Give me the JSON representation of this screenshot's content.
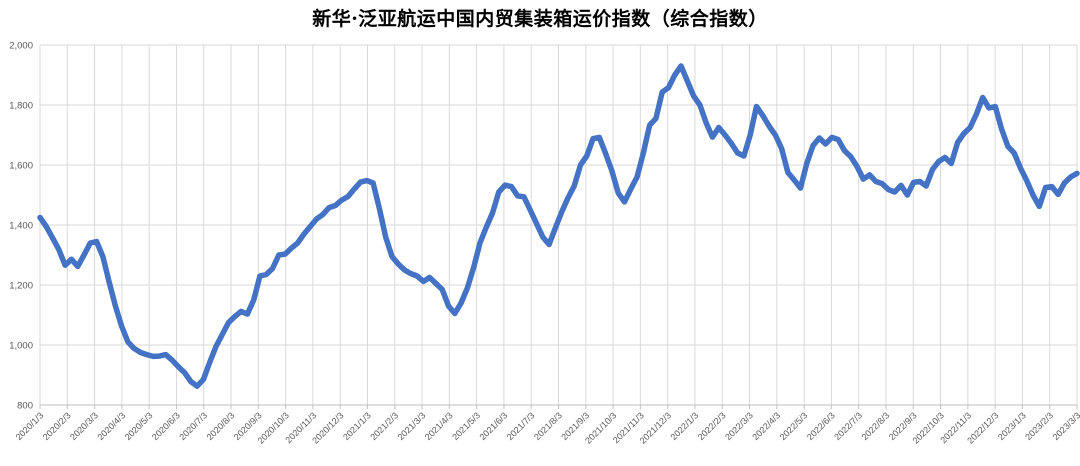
{
  "chart_data": {
    "type": "line",
    "title": "新华·泛亚航运中国内贸集装箱运价指数（综合指数）",
    "legend": "none",
    "grid": true,
    "ylim": [
      800,
      2000
    ],
    "y_tick_step": 200,
    "y_tick_labels": [
      "800",
      "1,000",
      "1,200",
      "1,400",
      "1,600",
      "1,800",
      "2,000"
    ],
    "x_tick_labels": [
      "2020/1/3",
      "2020/2/3",
      "2020/3/3",
      "2020/4/3",
      "2020/5/3",
      "2020/6/3",
      "2020/7/3",
      "2020/8/3",
      "2020/9/3",
      "2020/10/3",
      "2020/11/3",
      "2020/12/3",
      "2021/1/3",
      "2021/2/3",
      "2021/3/3",
      "2021/4/3",
      "2021/5/3",
      "2021/6/3",
      "2021/7/3",
      "2021/8/3",
      "2021/9/3",
      "2021/10/3",
      "2021/11/3",
      "2021/12/3",
      "2022/1/3",
      "2022/2/3",
      "2022/3/3",
      "2022/4/3",
      "2022/5/3",
      "2022/6/3",
      "2022/7/3",
      "2022/8/3",
      "2022/9/3",
      "2022/10/3",
      "2022/11/3",
      "2022/12/3",
      "2023/1/3",
      "2023/2/3",
      "2023/3/3"
    ],
    "colors": {
      "line": "#4472C4",
      "gridline": "#D9D9D9",
      "axis": "#BFBFBF",
      "tick_label": "#595959",
      "title": "#000000"
    },
    "series": [
      {
        "name": "综合指数",
        "frequency": "weekly",
        "values": [
          1425,
          1395,
          1357,
          1318,
          1266,
          1286,
          1262,
          1300,
          1340,
          1345,
          1295,
          1210,
          1130,
          1062,
          1010,
          988,
          975,
          968,
          962,
          963,
          968,
          950,
          928,
          908,
          878,
          863,
          885,
          942,
          995,
          1035,
          1075,
          1095,
          1112,
          1103,
          1150,
          1230,
          1235,
          1255,
          1300,
          1303,
          1323,
          1340,
          1370,
          1395,
          1420,
          1435,
          1458,
          1465,
          1483,
          1495,
          1520,
          1543,
          1548,
          1540,
          1455,
          1360,
          1295,
          1270,
          1250,
          1238,
          1230,
          1212,
          1225,
          1205,
          1185,
          1130,
          1105,
          1140,
          1190,
          1258,
          1340,
          1392,
          1440,
          1510,
          1533,
          1528,
          1497,
          1494,
          1450,
          1405,
          1360,
          1335,
          1390,
          1443,
          1490,
          1530,
          1600,
          1630,
          1688,
          1692,
          1638,
          1580,
          1507,
          1477,
          1520,
          1560,
          1640,
          1733,
          1755,
          1843,
          1858,
          1900,
          1930,
          1880,
          1830,
          1800,
          1740,
          1693,
          1725,
          1700,
          1672,
          1640,
          1630,
          1700,
          1795,
          1765,
          1730,
          1700,
          1655,
          1575,
          1550,
          1523,
          1605,
          1665,
          1690,
          1670,
          1692,
          1685,
          1648,
          1628,
          1595,
          1553,
          1567,
          1545,
          1538,
          1518,
          1510,
          1532,
          1500,
          1542,
          1545,
          1530,
          1585,
          1612,
          1625,
          1605,
          1675,
          1705,
          1725,
          1770,
          1825,
          1790,
          1795,
          1720,
          1662,
          1640,
          1590,
          1548,
          1500,
          1462,
          1525,
          1528,
          1502,
          1540,
          1560,
          1572
        ]
      }
    ]
  }
}
